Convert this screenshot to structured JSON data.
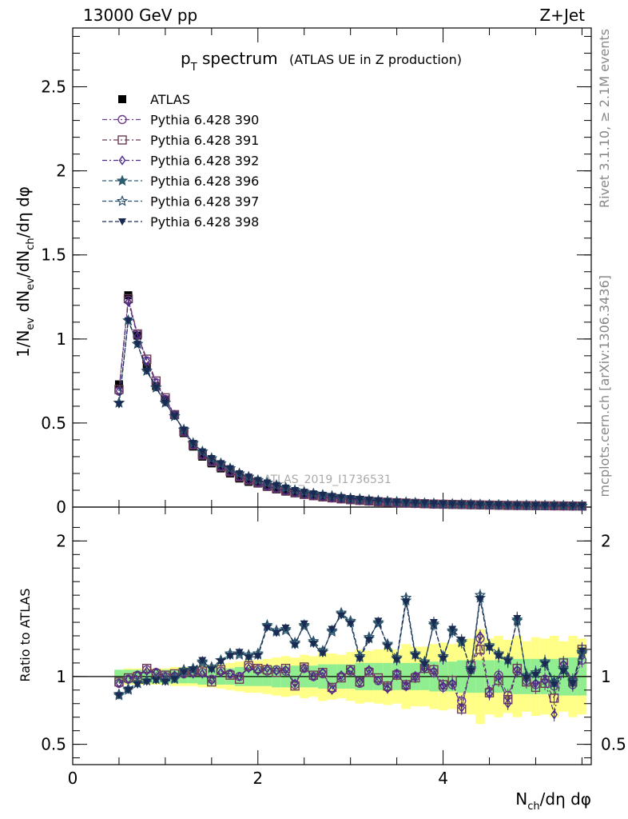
{
  "header": {
    "energy": "13000 GeV pp",
    "process": "Z+Jet",
    "side_top": "Rivet 3.1.10, ≥ 2.1M events",
    "side_bottom": "mcplots.cern.ch [arXiv:1306.3436]",
    "watermark": "ATLAS_2019_I1736531"
  },
  "colors": {
    "atlas": "#000000",
    "p390": "#6a3d8a",
    "p391": "#6b3b55",
    "p392": "#4a2a8a",
    "p396": "#2f5b6e",
    "p397": "#2a4f6a",
    "p398": "#1a2a52",
    "band_inner": "#90ee90",
    "band_outer": "#ffff88"
  },
  "chart_data": [
    {
      "type": "scatter",
      "panel": "main",
      "title_main": "p",
      "title_sub": "T",
      "title_rest": " spectrum",
      "title_note": "(ATLAS UE in Z production)",
      "ylabel": "1/N_ev dN_ev/dN_ch/dη dφ",
      "ylim": [
        0,
        2.85
      ],
      "xlim": [
        0,
        5.6
      ],
      "yticks": [
        "0",
        "0.5",
        "1",
        "1.5",
        "2",
        "2.5"
      ],
      "x": [
        0.5,
        0.6,
        0.7,
        0.8,
        0.9,
        1.0,
        1.1,
        1.2,
        1.3,
        1.4,
        1.5,
        1.6,
        1.7,
        1.8,
        1.9,
        2.0,
        2.1,
        2.2,
        2.3,
        2.4,
        2.5,
        2.6,
        2.7,
        2.8,
        2.9,
        3.0,
        3.1,
        3.2,
        3.3,
        3.4,
        3.5,
        3.6,
        3.7,
        3.8,
        3.9,
        4.0,
        4.1,
        4.2,
        4.3,
        4.4,
        4.5,
        4.6,
        4.7,
        4.8,
        4.9,
        5.0,
        5.1,
        5.2,
        5.3,
        5.4,
        5.5
      ],
      "series": [
        {
          "name": "ATLAS",
          "marker": "square-filled",
          "values": [
            0.73,
            1.26,
            1.02,
            0.83,
            0.72,
            0.64,
            0.55,
            0.44,
            0.36,
            0.3,
            0.26,
            0.23,
            0.2,
            0.17,
            0.15,
            0.14,
            0.12,
            0.105,
            0.092,
            0.082,
            0.073,
            0.065,
            0.058,
            0.052,
            0.047,
            0.042,
            0.038,
            0.034,
            0.031,
            0.028,
            0.025,
            0.023,
            0.021,
            0.019,
            0.017,
            0.016,
            0.015,
            0.014,
            0.013,
            0.012,
            0.011,
            0.01,
            0.0095,
            0.009,
            0.0085,
            0.008,
            0.0075,
            0.007,
            0.0065,
            0.006,
            0.0055
          ]
        },
        {
          "name": "Pythia 6.428 390",
          "marker": "circle-open",
          "values": [
            0.69,
            1.23,
            1.03,
            0.87,
            0.74,
            0.64,
            0.55,
            0.45,
            0.37,
            0.31,
            0.27,
            0.24,
            0.21,
            0.18,
            0.16,
            0.145,
            0.125,
            0.11,
            0.097,
            0.086,
            0.076,
            0.068,
            0.061,
            0.055,
            0.049,
            0.044,
            0.04,
            0.036,
            0.032,
            0.029,
            0.026,
            0.024,
            0.022,
            0.02,
            0.018,
            0.017,
            0.016,
            0.015,
            0.014,
            0.013,
            0.012,
            0.011,
            0.01,
            0.0095,
            0.009,
            0.0085,
            0.008,
            0.0075,
            0.007,
            0.0065,
            0.006
          ]
        },
        {
          "name": "Pythia 6.428 391",
          "marker": "square-open",
          "values": [
            0.7,
            1.24,
            1.03,
            0.88,
            0.75,
            0.65,
            0.55,
            0.45,
            0.37,
            0.31,
            0.27,
            0.24,
            0.21,
            0.18,
            0.16,
            0.145,
            0.125,
            0.11,
            0.097,
            0.086,
            0.076,
            0.068,
            0.061,
            0.055,
            0.049,
            0.044,
            0.04,
            0.036,
            0.032,
            0.029,
            0.026,
            0.024,
            0.022,
            0.02,
            0.018,
            0.017,
            0.016,
            0.015,
            0.014,
            0.013,
            0.012,
            0.011,
            0.01,
            0.0095,
            0.009,
            0.0085,
            0.008,
            0.0075,
            0.007,
            0.0065,
            0.006
          ]
        },
        {
          "name": "Pythia 6.428 392",
          "marker": "diamond-open",
          "values": [
            0.69,
            1.22,
            1.02,
            0.87,
            0.74,
            0.64,
            0.55,
            0.45,
            0.37,
            0.31,
            0.27,
            0.24,
            0.21,
            0.18,
            0.16,
            0.145,
            0.125,
            0.11,
            0.097,
            0.086,
            0.076,
            0.068,
            0.061,
            0.055,
            0.049,
            0.044,
            0.04,
            0.036,
            0.032,
            0.029,
            0.026,
            0.024,
            0.022,
            0.02,
            0.018,
            0.017,
            0.016,
            0.015,
            0.014,
            0.013,
            0.012,
            0.011,
            0.01,
            0.0095,
            0.009,
            0.0085,
            0.008,
            0.0075,
            0.007,
            0.0065,
            0.006
          ]
        },
        {
          "name": "Pythia 6.428 396",
          "marker": "star-filled",
          "values": [
            0.62,
            1.11,
            0.97,
            0.81,
            0.71,
            0.62,
            0.54,
            0.46,
            0.38,
            0.33,
            0.29,
            0.26,
            0.23,
            0.2,
            0.18,
            0.16,
            0.145,
            0.13,
            0.115,
            0.1,
            0.09,
            0.08,
            0.072,
            0.065,
            0.058,
            0.052,
            0.047,
            0.042,
            0.038,
            0.034,
            0.031,
            0.028,
            0.025,
            0.023,
            0.021,
            0.019,
            0.018,
            0.017,
            0.016,
            0.015,
            0.014,
            0.013,
            0.012,
            0.011,
            0.0105,
            0.01,
            0.0095,
            0.009,
            0.0085,
            0.008,
            0.0075
          ]
        },
        {
          "name": "Pythia 6.428 397",
          "marker": "star-open",
          "values": [
            0.62,
            1.11,
            0.97,
            0.81,
            0.71,
            0.62,
            0.54,
            0.46,
            0.38,
            0.33,
            0.29,
            0.26,
            0.23,
            0.2,
            0.18,
            0.16,
            0.145,
            0.13,
            0.115,
            0.1,
            0.09,
            0.08,
            0.072,
            0.065,
            0.058,
            0.052,
            0.047,
            0.042,
            0.038,
            0.034,
            0.031,
            0.028,
            0.025,
            0.023,
            0.021,
            0.019,
            0.018,
            0.017,
            0.016,
            0.015,
            0.014,
            0.013,
            0.012,
            0.011,
            0.0105,
            0.01,
            0.0095,
            0.009,
            0.0085,
            0.008,
            0.0075
          ]
        },
        {
          "name": "Pythia 6.428 398",
          "marker": "triangle-down-filled",
          "values": [
            0.61,
            1.11,
            0.97,
            0.81,
            0.71,
            0.62,
            0.54,
            0.46,
            0.38,
            0.33,
            0.29,
            0.26,
            0.23,
            0.2,
            0.18,
            0.16,
            0.145,
            0.13,
            0.115,
            0.1,
            0.09,
            0.08,
            0.072,
            0.065,
            0.058,
            0.052,
            0.047,
            0.042,
            0.038,
            0.034,
            0.031,
            0.028,
            0.025,
            0.023,
            0.021,
            0.019,
            0.018,
            0.017,
            0.016,
            0.015,
            0.014,
            0.013,
            0.012,
            0.011,
            0.0105,
            0.01,
            0.0095,
            0.009,
            0.0085,
            0.008,
            0.0075
          ]
        }
      ]
    },
    {
      "type": "scatter",
      "panel": "ratio",
      "ylabel": "Ratio to ATLAS",
      "xlabel": "N_ch/dη dφ",
      "ylim": [
        0.35,
        2.25
      ],
      "xlim": [
        0,
        5.6
      ],
      "xticks": [
        "0",
        "2",
        "4"
      ],
      "yticks": [
        "0.5",
        "1",
        "2"
      ],
      "x": [
        0.5,
        0.6,
        0.7,
        0.8,
        0.9,
        1.0,
        1.1,
        1.2,
        1.3,
        1.4,
        1.5,
        1.6,
        1.7,
        1.8,
        1.9,
        2.0,
        2.1,
        2.2,
        2.3,
        2.4,
        2.5,
        2.6,
        2.7,
        2.8,
        2.9,
        3.0,
        3.1,
        3.2,
        3.3,
        3.4,
        3.5,
        3.6,
        3.7,
        3.8,
        3.9,
        4.0,
        4.1,
        4.2,
        4.3,
        4.4,
        4.5,
        4.6,
        4.7,
        4.8,
        4.9,
        5.0,
        5.1,
        5.2,
        5.3,
        5.4,
        5.5
      ],
      "band_inner": [
        0.05,
        0.05,
        0.05,
        0.05,
        0.05,
        0.05,
        0.05,
        0.05,
        0.05,
        0.06,
        0.06,
        0.06,
        0.06,
        0.07,
        0.07,
        0.07,
        0.07,
        0.08,
        0.08,
        0.08,
        0.08,
        0.08,
        0.09,
        0.09,
        0.09,
        0.09,
        0.1,
        0.1,
        0.1,
        0.1,
        0.1,
        0.1,
        0.1,
        0.1,
        0.11,
        0.11,
        0.11,
        0.12,
        0.12,
        0.12,
        0.12,
        0.12,
        0.12,
        0.13,
        0.13,
        0.13,
        0.13,
        0.13,
        0.14,
        0.14,
        0.14
      ],
      "band_outer": [
        0.05,
        0.06,
        0.06,
        0.06,
        0.06,
        0.06,
        0.07,
        0.07,
        0.07,
        0.08,
        0.08,
        0.09,
        0.1,
        0.11,
        0.12,
        0.12,
        0.13,
        0.14,
        0.15,
        0.14,
        0.16,
        0.15,
        0.18,
        0.17,
        0.16,
        0.18,
        0.2,
        0.19,
        0.2,
        0.21,
        0.2,
        0.24,
        0.22,
        0.22,
        0.24,
        0.25,
        0.24,
        0.26,
        0.28,
        0.35,
        0.28,
        0.3,
        0.27,
        0.3,
        0.26,
        0.29,
        0.28,
        0.3,
        0.26,
        0.3,
        0.28
      ],
      "series": [
        {
          "name": "Pythia 6.428 390",
          "values": [
            0.95,
            0.98,
            1.01,
            1.05,
            1.03,
            1.0,
            1.0,
            1.02,
            1.03,
            1.03,
            0.98,
            1.04,
            1.02,
            1.0,
            1.07,
            1.05,
            1.04,
            1.05,
            1.04,
            0.94,
            1.06,
            1.0,
            1.02,
            0.91,
            1.0,
            1.04,
            0.95,
            1.04,
            0.97,
            0.92,
            1.02,
            0.93,
            1.0,
            1.07,
            1.03,
            0.92,
            0.94,
            0.82,
            1.05,
            1.28,
            0.89,
            1.01,
            0.86,
            1.04,
            0.97,
            0.94,
            0.98,
            0.93,
            1.08,
            0.94,
            1.12
          ]
        },
        {
          "name": "Pythia 6.428 391",
          "values": [
            0.96,
            0.99,
            1.0,
            1.06,
            1.02,
            1.01,
            1.02,
            1.03,
            1.04,
            1.04,
            0.96,
            1.05,
            1.01,
            0.98,
            1.08,
            1.06,
            1.05,
            1.03,
            1.06,
            0.93,
            1.07,
            1.01,
            1.03,
            0.92,
            0.99,
            1.05,
            0.96,
            1.03,
            0.99,
            0.93,
            1.01,
            0.94,
            0.99,
            1.06,
            1.05,
            0.94,
            0.97,
            0.76,
            1.08,
            1.2,
            0.88,
            0.97,
            0.83,
            1.06,
            0.96,
            0.92,
            0.95,
            0.84,
            1.1,
            0.96,
            1.2
          ]
        },
        {
          "name": "Pythia 6.428 392",
          "values": [
            0.95,
            0.98,
            1.01,
            1.04,
            1.03,
            1.0,
            1.01,
            1.02,
            1.02,
            1.02,
            0.97,
            1.03,
            1.02,
            1.0,
            1.06,
            1.04,
            1.06,
            1.04,
            1.05,
            0.95,
            1.06,
            1.0,
            1.03,
            0.9,
            1.01,
            1.05,
            0.96,
            1.05,
            0.97,
            0.91,
            1.02,
            0.93,
            1.0,
            1.06,
            1.04,
            0.93,
            0.95,
            0.77,
            1.06,
            1.3,
            0.87,
            1.0,
            0.8,
            1.05,
            0.98,
            0.95,
            0.97,
            0.72,
            1.09,
            0.95,
            1.15
          ]
        },
        {
          "name": "Pythia 6.428 396",
          "values": [
            0.86,
            0.9,
            0.95,
            0.97,
            0.98,
            0.97,
            0.98,
            1.04,
            1.06,
            1.11,
            1.06,
            1.12,
            1.16,
            1.17,
            1.15,
            1.16,
            1.38,
            1.33,
            1.35,
            1.24,
            1.38,
            1.25,
            1.18,
            1.34,
            1.46,
            1.4,
            1.14,
            1.28,
            1.4,
            1.23,
            1.13,
            1.56,
            1.16,
            1.1,
            1.39,
            1.14,
            1.34,
            1.26,
            1.05,
            1.58,
            1.22,
            1.16,
            1.12,
            1.42,
            1.0,
            1.02,
            1.1,
            0.95,
            1.05,
            0.96,
            1.18
          ]
        },
        {
          "name": "Pythia 6.428 397",
          "values": [
            0.87,
            0.91,
            0.95,
            0.97,
            0.98,
            0.97,
            0.99,
            1.05,
            1.05,
            1.1,
            1.07,
            1.12,
            1.17,
            1.16,
            1.16,
            1.17,
            1.37,
            1.34,
            1.34,
            1.25,
            1.37,
            1.26,
            1.19,
            1.33,
            1.47,
            1.41,
            1.15,
            1.29,
            1.39,
            1.24,
            1.14,
            1.58,
            1.17,
            1.11,
            1.38,
            1.15,
            1.33,
            1.25,
            1.06,
            1.6,
            1.23,
            1.17,
            1.13,
            1.41,
            1.01,
            1.03,
            1.11,
            0.96,
            1.06,
            0.97,
            1.17
          ]
        },
        {
          "name": "Pythia 6.428 398",
          "values": [
            0.86,
            0.9,
            0.94,
            0.96,
            0.97,
            0.96,
            0.98,
            1.03,
            1.05,
            1.12,
            1.05,
            1.11,
            1.15,
            1.18,
            1.14,
            1.15,
            1.36,
            1.32,
            1.36,
            1.23,
            1.39,
            1.24,
            1.17,
            1.35,
            1.45,
            1.39,
            1.13,
            1.27,
            1.41,
            1.22,
            1.12,
            1.55,
            1.15,
            1.09,
            1.4,
            1.13,
            1.35,
            1.27,
            1.04,
            1.57,
            1.21,
            1.15,
            1.11,
            1.43,
            0.99,
            1.01,
            1.09,
            0.94,
            1.04,
            0.95,
            1.19
          ]
        }
      ]
    }
  ]
}
